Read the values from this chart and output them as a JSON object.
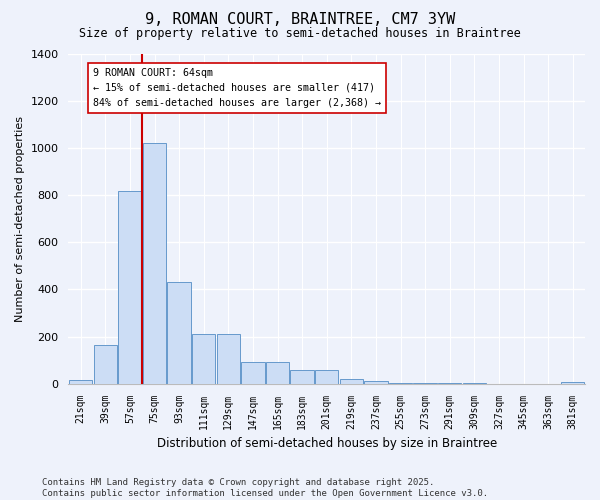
{
  "title": "9, ROMAN COURT, BRAINTREE, CM7 3YW",
  "subtitle": "Size of property relative to semi-detached houses in Braintree",
  "xlabel": "Distribution of semi-detached houses by size in Braintree",
  "ylabel": "Number of semi-detached properties",
  "categories": [
    "21sqm",
    "39sqm",
    "57sqm",
    "75sqm",
    "93sqm",
    "111sqm",
    "129sqm",
    "147sqm",
    "165sqm",
    "183sqm",
    "201sqm",
    "219sqm",
    "237sqm",
    "255sqm",
    "273sqm",
    "291sqm",
    "309sqm",
    "327sqm",
    "345sqm",
    "363sqm",
    "381sqm"
  ],
  "values": [
    15,
    165,
    820,
    1020,
    430,
    210,
    210,
    90,
    90,
    60,
    60,
    22,
    12,
    5,
    2,
    2,
    2,
    0,
    0,
    0,
    8
  ],
  "bar_color": "#ccddf5",
  "bar_edge_color": "#6699cc",
  "property_bin_index": 2,
  "annotation_title": "9 ROMAN COURT: 64sqm",
  "annotation_line1": "← 15% of semi-detached houses are smaller (417)",
  "annotation_line2": "84% of semi-detached houses are larger (2,368) →",
  "vline_color": "#cc0000",
  "annotation_box_facecolor": "#ffffff",
  "annotation_box_edgecolor": "#cc0000",
  "ylim": [
    0,
    1400
  ],
  "yticks": [
    0,
    200,
    400,
    600,
    800,
    1000,
    1200,
    1400
  ],
  "background_color": "#eef2fb",
  "grid_color": "#ffffff",
  "footer": "Contains HM Land Registry data © Crown copyright and database right 2025.\nContains public sector information licensed under the Open Government Licence v3.0."
}
